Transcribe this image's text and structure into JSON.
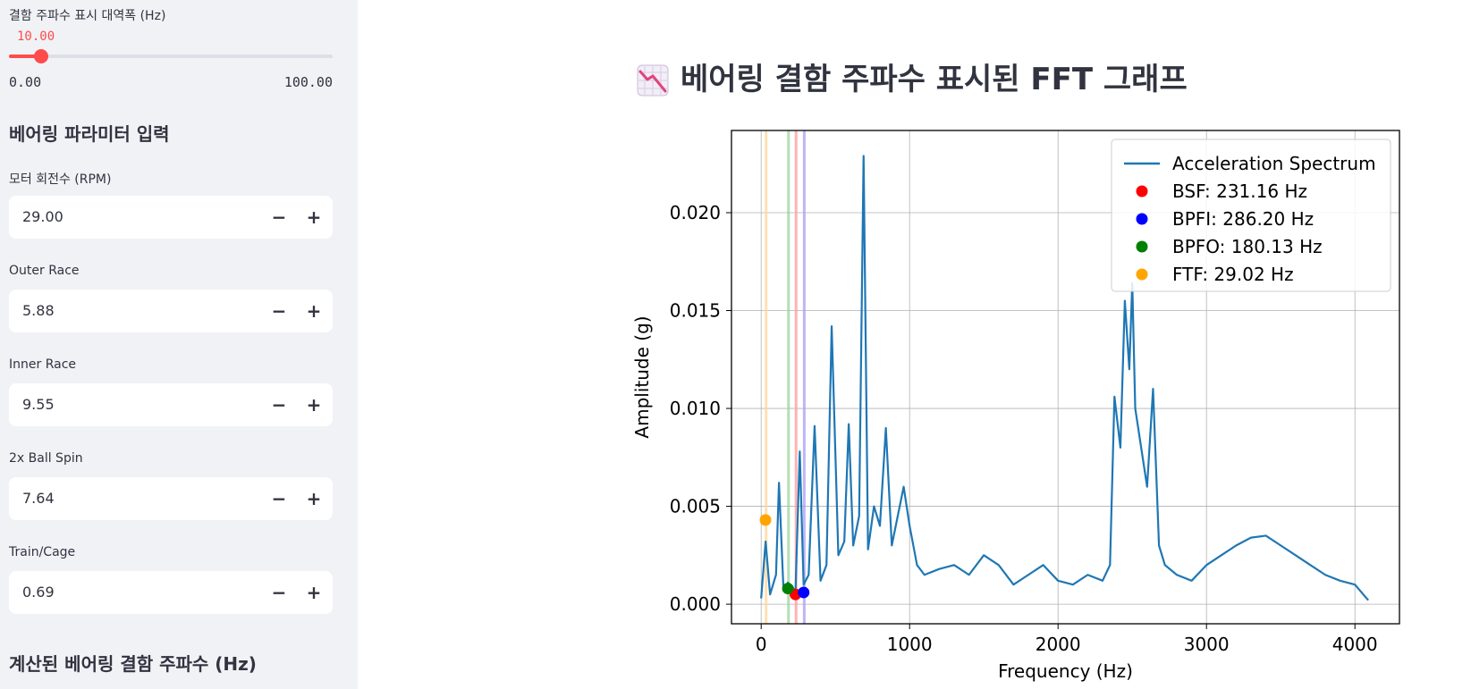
{
  "sidebar": {
    "slider": {
      "label": "결함 주파수 표시 대역폭 (Hz)",
      "value": "10.00",
      "min_label": "0.00",
      "max_label": "100.00",
      "fraction": 0.1,
      "accent": "#ff4b4b"
    },
    "bearing_heading": "베어링 파라미터 입력",
    "inputs": [
      {
        "label": "모터 회전수 (RPM)",
        "value": "29.00"
      },
      {
        "label": "Outer Race",
        "value": "5.88"
      },
      {
        "label": "Inner Race",
        "value": "9.55"
      },
      {
        "label": "2x Ball Spin",
        "value": "7.64"
      },
      {
        "label": "Train/Cage",
        "value": "0.69"
      }
    ],
    "minus_symbol": "−",
    "plus_symbol": "+",
    "computed_heading": "계산된 베어링 결함 주파수 (Hz)"
  },
  "main": {
    "title_icon": "chart-decreasing-icon",
    "title": "베어링 결함 주파수 표시된 FFT 그래프"
  },
  "chart_data": {
    "type": "line",
    "xlabel": "Frequency (Hz)",
    "ylabel": "Amplitude (g)",
    "xlim": [
      -200,
      4300
    ],
    "ylim": [
      -0.001,
      0.0242
    ],
    "xticks": [
      0,
      1000,
      2000,
      3000,
      4000
    ],
    "xtick_labels": [
      "0",
      "1000",
      "2000",
      "3000",
      "4000"
    ],
    "yticks": [
      0.0,
      0.005,
      0.01,
      0.015,
      0.02
    ],
    "ytick_labels": [
      "0.000",
      "0.005",
      "0.010",
      "0.015",
      "0.020"
    ],
    "grid": true,
    "legend_position": "top-right",
    "series": [
      {
        "name": "Acceleration Spectrum",
        "color": "#1f77b4",
        "x": [
          0,
          30,
          60,
          100,
          120,
          150,
          180,
          210,
          231,
          260,
          286,
          320,
          360,
          400,
          440,
          475,
          520,
          560,
          590,
          620,
          660,
          690,
          720,
          760,
          800,
          840,
          880,
          920,
          960,
          1000,
          1050,
          1100,
          1200,
          1300,
          1400,
          1500,
          1600,
          1700,
          1800,
          1900,
          2000,
          2100,
          2200,
          2300,
          2350,
          2380,
          2420,
          2450,
          2480,
          2500,
          2520,
          2550,
          2600,
          2640,
          2680,
          2720,
          2800,
          2900,
          3000,
          3100,
          3200,
          3300,
          3400,
          3500,
          3600,
          3700,
          3800,
          3900,
          4000,
          4090
        ],
        "values": [
          0.0003,
          0.0032,
          0.0005,
          0.0015,
          0.0062,
          0.0008,
          0.0011,
          0.0009,
          0.0006,
          0.0078,
          0.001,
          0.0015,
          0.0091,
          0.0012,
          0.002,
          0.0142,
          0.0025,
          0.0032,
          0.0092,
          0.003,
          0.0045,
          0.0229,
          0.0028,
          0.005,
          0.004,
          0.009,
          0.003,
          0.0045,
          0.006,
          0.004,
          0.002,
          0.0015,
          0.0018,
          0.002,
          0.0015,
          0.0025,
          0.002,
          0.001,
          0.0015,
          0.002,
          0.0012,
          0.001,
          0.0015,
          0.0012,
          0.002,
          0.0106,
          0.008,
          0.0155,
          0.012,
          0.0164,
          0.01,
          0.0085,
          0.006,
          0.011,
          0.003,
          0.002,
          0.0015,
          0.0012,
          0.002,
          0.0025,
          0.003,
          0.0034,
          0.0035,
          0.003,
          0.0025,
          0.002,
          0.0015,
          0.0012,
          0.001,
          0.0002
        ]
      }
    ],
    "markers": [
      {
        "name": "BSF: 231.16 Hz",
        "x": 231.16,
        "y": 0.0005,
        "color": "#ff0000",
        "band_color": "#ff9999"
      },
      {
        "name": "BPFI: 286.20 Hz",
        "x": 286.2,
        "y": 0.0006,
        "color": "#0000ff",
        "band_color": "#a99ef5"
      },
      {
        "name": "BPFO: 180.13 Hz",
        "x": 180.13,
        "y": 0.0008,
        "color": "#008000",
        "band_color": "#99d699"
      },
      {
        "name": "FTF: 29.02 Hz",
        "x": 29.02,
        "y": 0.0043,
        "color": "#ffa500",
        "band_color": "#ffd699"
      }
    ],
    "band_width_hz": 10.0
  }
}
